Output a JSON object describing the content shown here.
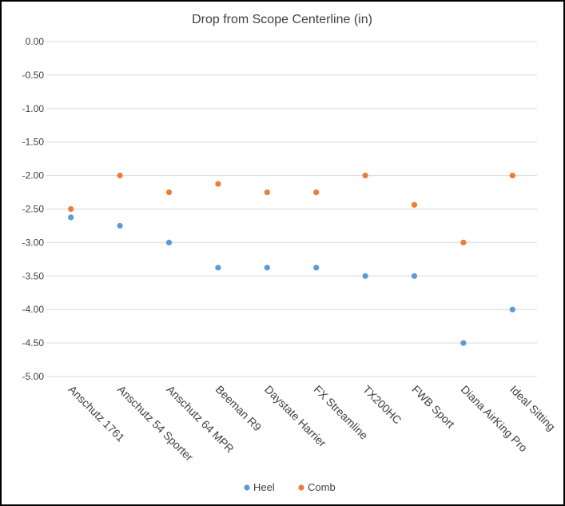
{
  "chart_data": {
    "type": "scatter",
    "title": "Drop from Scope Centerline  (in)",
    "categories": [
      "Anschutz 1761",
      "Anschutz 54 Sporter",
      "Anschutz 64 MPR",
      "Beeman R9",
      "Daystate Harrier",
      "FX Streamline",
      "TX200HC",
      "FWB Sport",
      "Diana AirKing Pro",
      "Ideal Sitting"
    ],
    "series": [
      {
        "name": "Heel",
        "color": "#5B9BD5",
        "values": [
          -2.625,
          -2.75,
          -3.0,
          -3.375,
          -3.375,
          -3.375,
          -3.5,
          -3.5,
          -4.5,
          -4.0
        ]
      },
      {
        "name": "Comb",
        "color": "#ED7D31",
        "values": [
          -2.5,
          -2.0,
          -2.25,
          -2.125,
          -2.25,
          -2.25,
          -2.0,
          -2.4375,
          -3.0,
          -2.0
        ]
      }
    ],
    "yticks": [
      "0.00",
      "-0.50",
      "-1.00",
      "-1.50",
      "-2.00",
      "-2.50",
      "-3.00",
      "-3.50",
      "-4.00",
      "-4.50",
      "-5.00"
    ],
    "ylim": [
      -5.0,
      0.0
    ],
    "grid": true,
    "legend_position": "bottom",
    "gridline_color": "#D9D9D9",
    "text_color": "#404040"
  }
}
